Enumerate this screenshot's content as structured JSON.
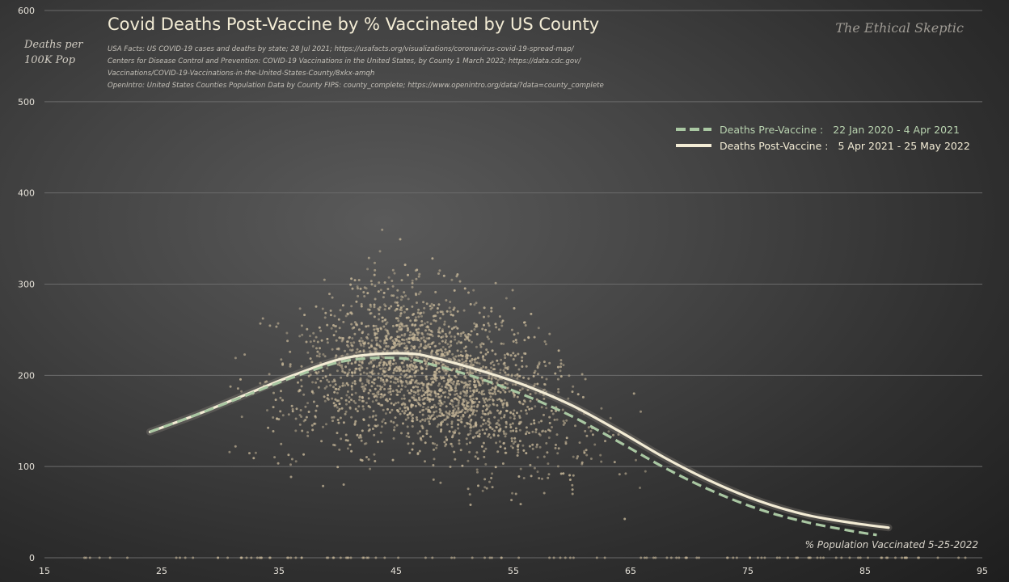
{
  "chart_data": {
    "type": "scatter",
    "title": "Covid Deaths Post-Vaccine by % Vaccinated by US County",
    "ylabel": "Deaths per 100K Pop",
    "xlabel": "% Population Vaccinated 5-25-2022",
    "watermark": "The Ethical Skeptic",
    "sources": [
      "USA Facts: US COVID-19 cases and deaths by state; 28 Jul 2021; https://usafacts.org/visualizations/coronavirus-covid-19-spread-map/",
      "Centers for Disease Control and Prevention: COVID-19 Vaccinations in the United States, by County 1 March 2022; https://data.cdc.gov/",
      "Vaccinations/COVID-19-Vaccinations-in-the-United-States-County/8xkx-amqh",
      "OpenIntro: United States Counties Population Data by County FIPS: county_complete; https://www.openintro.org/data/?data=county_complete"
    ],
    "xlim": [
      15,
      95
    ],
    "ylim": [
      0,
      600
    ],
    "x_ticks": [
      15,
      25,
      35,
      45,
      55,
      65,
      75,
      85,
      95
    ],
    "y_ticks": [
      0,
      100,
      200,
      300,
      400,
      500,
      600
    ],
    "grid": "horizontal",
    "legend_position": "top-right",
    "series": [
      {
        "name": "Deaths Pre-Vaccine :",
        "period": "22 Jan 2020 - 4 Apr 2021",
        "style": "dashed",
        "color": "#a9c7a2",
        "x": [
          24,
          28,
          32,
          36,
          40,
          43,
          46,
          48,
          52,
          56,
          60,
          64,
          68,
          72,
          76,
          80,
          84,
          86
        ],
        "y": [
          138,
          157,
          177,
          197,
          214,
          219,
          218,
          212,
          197,
          178,
          155,
          127,
          98,
          73,
          53,
          39,
          29,
          25
        ]
      },
      {
        "name": "Deaths Post-Vaccine :",
        "period": "5 Apr 2021 - 25 May 2022",
        "style": "solid",
        "color": "#f3ecd5",
        "x": [
          24,
          28,
          32,
          36,
          40,
          43,
          46,
          48,
          52,
          56,
          60,
          64,
          68,
          72,
          76,
          80,
          84,
          87
        ],
        "y": [
          138,
          157,
          178,
          199,
          217,
          223,
          224,
          220,
          206,
          189,
          167,
          139,
          109,
          83,
          62,
          47,
          38,
          33
        ]
      }
    ],
    "scatter_color": "#c9b99a"
  }
}
